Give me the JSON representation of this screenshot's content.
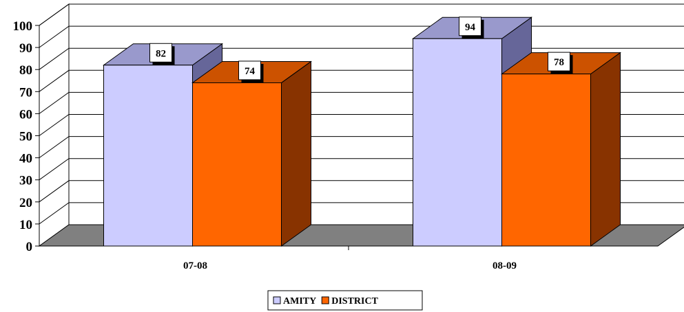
{
  "chart_data": {
    "type": "bar",
    "title": "",
    "xlabel": "",
    "ylabel": "",
    "categories": [
      "07-08",
      "08-09"
    ],
    "series": [
      {
        "name": "AMITY",
        "values": [
          82,
          94
        ],
        "color": "#ccccff",
        "top_color": "#9999cc",
        "side_color": "#666699"
      },
      {
        "name": "DISTRICT",
        "values": [
          74,
          78
        ],
        "color": "#ff6600",
        "top_color": "#cc5200",
        "side_color": "#883300"
      }
    ],
    "ylim": [
      0,
      100
    ],
    "yticks": [
      "0",
      "10",
      "20",
      "30",
      "40",
      "50",
      "60",
      "70",
      "80",
      "90",
      "100"
    ],
    "grid": true,
    "legend_position": "bottom-center",
    "floor_color": "#808080"
  }
}
